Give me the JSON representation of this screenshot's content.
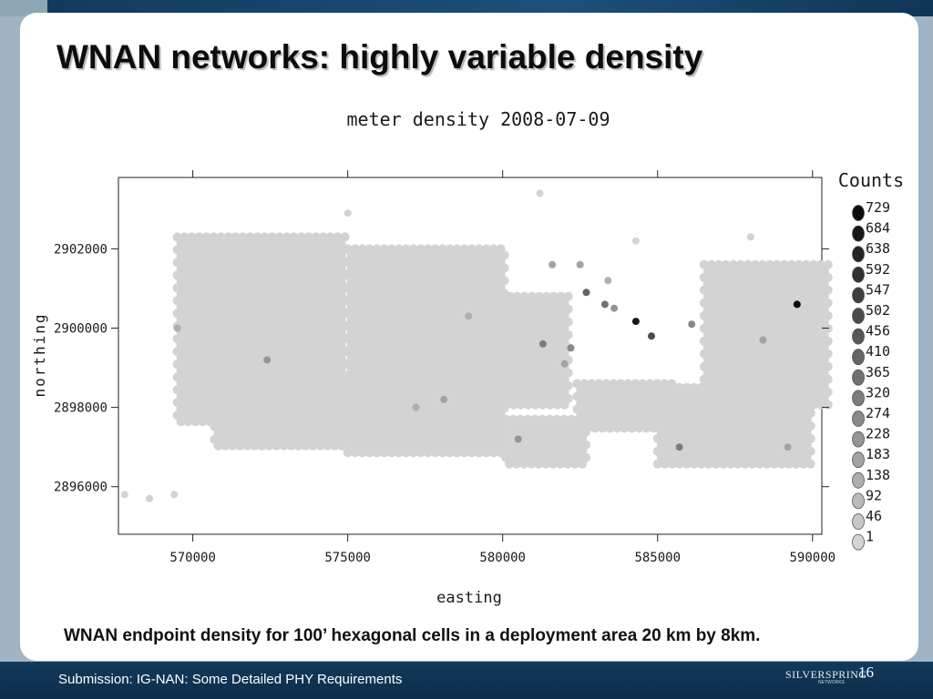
{
  "slide": {
    "title": "WNAN networks: highly variable density",
    "caption": "WNAN endpoint density for 100’ hexagonal cells in a deployment area 20 km by 8km.",
    "footer": "Submission: IG-NAN: Some Detailed PHY Requirements",
    "logo": "SILVERSPRING",
    "logo_sub": "NETWORKS",
    "page_number": "16"
  },
  "colors": {
    "background_band": "#123a5e",
    "slide_bg": "#ffffff",
    "hex_light": "#d4d4d4",
    "hex_dark": "#111111"
  },
  "chart_data": {
    "type": "heatmap",
    "subtype": "hexbin",
    "title": "meter density 2008-07-09",
    "xlabel": "easting",
    "ylabel": "northing",
    "xlim": [
      567600,
      590300
    ],
    "ylim": [
      2894800,
      2903800
    ],
    "xticks": [
      570000,
      575000,
      580000,
      585000,
      590000
    ],
    "xtick_labels": [
      "570000",
      "575000",
      "580000",
      "585000",
      "590000"
    ],
    "yticks": [
      2896000,
      2898000,
      2900000,
      2902000
    ],
    "ytick_labels": [
      "2896000",
      "2898000",
      "2900000",
      "2902000"
    ],
    "grid": false,
    "legend": {
      "title": "Counts",
      "position": "right",
      "values": [
        729,
        684,
        638,
        592,
        547,
        502,
        456,
        410,
        365,
        320,
        274,
        228,
        183,
        138,
        92,
        46,
        1
      ],
      "labels": [
        "729",
        "684",
        "638",
        "592",
        "547",
        "502",
        "456",
        "410",
        "365",
        "320",
        "274",
        "228",
        "183",
        "138",
        "92",
        "46",
        "1"
      ]
    },
    "regions": [
      {
        "x": [
          569500,
          575000
        ],
        "y": [
          2897500,
          2902300
        ],
        "count": 5
      },
      {
        "x": [
          575000,
          580100
        ],
        "y": [
          2896800,
          2902000
        ],
        "count": 5
      },
      {
        "x": [
          570700,
          578500
        ],
        "y": [
          2897000,
          2898800
        ],
        "count": 5
      },
      {
        "x": [
          580000,
          582200
        ],
        "y": [
          2898000,
          2900800
        ],
        "count": 5
      },
      {
        "x": [
          580100,
          582800
        ],
        "y": [
          2896500,
          2897700
        ],
        "count": 5
      },
      {
        "x": [
          582400,
          585600
        ],
        "y": [
          2897400,
          2898600
        ],
        "count": 5
      },
      {
        "x": [
          585000,
          590000
        ],
        "y": [
          2896500,
          2898500
        ],
        "count": 5
      },
      {
        "x": [
          586500,
          590500
        ],
        "y": [
          2898000,
          2901600
        ],
        "count": 5
      }
    ],
    "points": [
      {
        "x": 584300,
        "y": 2900170,
        "count": 684
      },
      {
        "x": 589500,
        "y": 2900600,
        "count": 729
      },
      {
        "x": 584800,
        "y": 2899800,
        "count": 502
      },
      {
        "x": 582700,
        "y": 2900900,
        "count": 410
      },
      {
        "x": 581300,
        "y": 2899600,
        "count": 320
      },
      {
        "x": 582200,
        "y": 2899500,
        "count": 274
      },
      {
        "x": 583300,
        "y": 2900600,
        "count": 365
      },
      {
        "x": 586100,
        "y": 2900100,
        "count": 274
      },
      {
        "x": 583600,
        "y": 2900500,
        "count": 228
      },
      {
        "x": 578100,
        "y": 2898200,
        "count": 183
      },
      {
        "x": 572400,
        "y": 2899200,
        "count": 228
      },
      {
        "x": 580500,
        "y": 2897200,
        "count": 228
      },
      {
        "x": 585700,
        "y": 2897000,
        "count": 320
      },
      {
        "x": 589200,
        "y": 2897000,
        "count": 183
      },
      {
        "x": 578900,
        "y": 2900300,
        "count": 138
      },
      {
        "x": 569500,
        "y": 2900000,
        "count": 138
      },
      {
        "x": 577200,
        "y": 2898000,
        "count": 138
      },
      {
        "x": 588400,
        "y": 2899700,
        "count": 183
      },
      {
        "x": 582000,
        "y": 2899100,
        "count": 183
      },
      {
        "x": 581600,
        "y": 2901600,
        "count": 183
      },
      {
        "x": 582500,
        "y": 2901600,
        "count": 183
      },
      {
        "x": 583400,
        "y": 2901200,
        "count": 138
      },
      {
        "x": 581200,
        "y": 2903400,
        "count": 5
      },
      {
        "x": 567800,
        "y": 2895800,
        "count": 5
      },
      {
        "x": 568600,
        "y": 2895700,
        "count": 5
      },
      {
        "x": 569400,
        "y": 2895800,
        "count": 5
      },
      {
        "x": 575000,
        "y": 2902900,
        "count": 5
      },
      {
        "x": 588000,
        "y": 2902300,
        "count": 5
      },
      {
        "x": 584300,
        "y": 2902200,
        "count": 5
      },
      {
        "x": 590500,
        "y": 2901300,
        "count": 5
      }
    ]
  }
}
